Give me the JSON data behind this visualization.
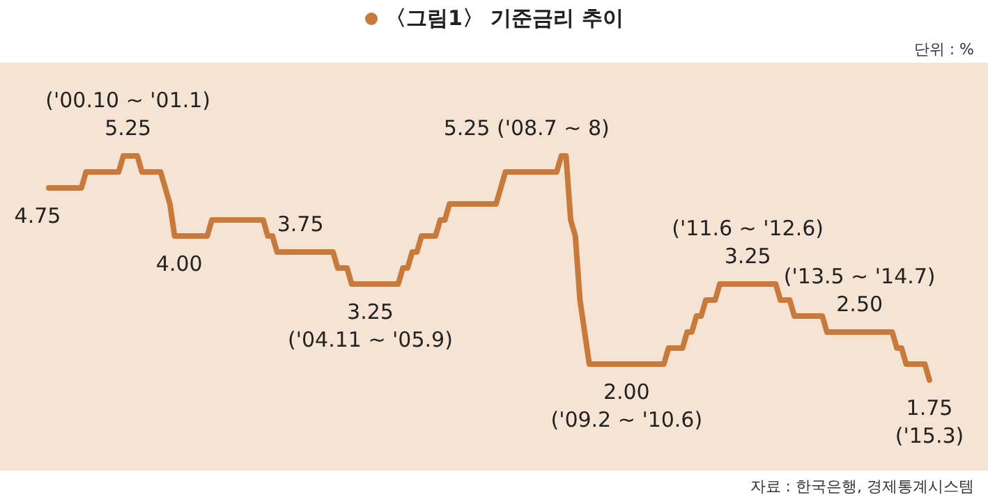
{
  "chart_data": {
    "type": "line",
    "title": "〈그림1〉 기준금리 추이",
    "annotations": [
      "단위 : %",
      "자료 : 한국은행, 경제통계시스템"
    ],
    "categories": [
      null,
      null,
      null,
      null,
      null,
      null,
      null,
      null,
      null,
      null,
      null,
      null,
      null,
      null,
      null,
      null,
      null,
      null,
      null,
      null,
      null,
      null,
      null,
      null,
      null,
      null,
      null,
      null,
      null,
      null,
      null,
      null,
      null,
      null,
      null,
      null,
      null,
      null,
      null,
      null,
      null,
      null,
      null,
      null,
      null,
      null,
      null,
      null,
      null,
      null,
      null,
      null,
      null,
      null,
      null,
      null,
      null,
      null,
      null,
      null,
      null,
      null,
      null,
      null,
      null,
      null,
      null,
      null,
      null,
      null,
      null,
      null,
      null,
      null,
      null,
      null,
      null,
      null,
      null,
      null,
      null,
      null,
      null,
      null,
      null,
      null,
      null,
      null,
      null,
      null,
      null,
      null,
      null,
      null,
      null,
      null,
      null,
      null,
      null,
      null,
      null,
      null,
      null,
      null,
      null,
      null,
      null,
      null,
      null,
      null,
      null,
      null,
      null,
      null,
      null,
      null,
      null,
      null,
      null,
      null,
      null,
      null,
      null,
      null,
      null,
      null,
      null,
      null,
      null,
      null,
      null,
      null,
      null,
      null,
      null,
      null,
      null,
      null,
      null,
      null,
      null,
      null,
      null,
      null,
      null,
      null,
      null,
      null,
      null,
      null,
      null,
      null,
      null,
      null,
      null,
      null,
      null,
      null,
      null,
      null,
      null,
      null,
      null,
      null,
      null,
      null,
      null,
      null,
      null,
      null,
      null,
      null,
      null,
      null,
      null,
      null,
      null,
      null,
      null,
      null,
      null,
      null,
      null,
      null,
      null,
      null,
      null,
      null,
      null,
      null
    ],
    "series": [
      {
        "color": "#c87a3c",
        "values": [
          4.75,
          4.75,
          4.75,
          4.75,
          4.75,
          4.75,
          4.75,
          4.75,
          5,
          5,
          5,
          5,
          5,
          5,
          5,
          5,
          5.25,
          5.25,
          5.25,
          5.25,
          5,
          5,
          5,
          5,
          5,
          4.75,
          4.5,
          4,
          4,
          4,
          4,
          4,
          4,
          4,
          4,
          4.25,
          4.25,
          4.25,
          4.25,
          4.25,
          4.25,
          4.25,
          4.25,
          4.25,
          4.25,
          4.25,
          4.25,
          4,
          4,
          3.75,
          3.75,
          3.75,
          3.75,
          3.75,
          3.75,
          3.75,
          3.75,
          3.75,
          3.75,
          3.75,
          3.75,
          3.75,
          3.5,
          3.5,
          3.5,
          3.25,
          3.25,
          3.25,
          3.25,
          3.25,
          3.25,
          3.25,
          3.25,
          3.25,
          3.25,
          3.25,
          3.5,
          3.5,
          3.75,
          3.75,
          4,
          4,
          4,
          4,
          4.25,
          4.25,
          4.5,
          4.5,
          4.5,
          4.5,
          4.5,
          4.5,
          4.5,
          4.5,
          4.5,
          4.5,
          4.5,
          4.75,
          5,
          5,
          5,
          5,
          5,
          5,
          5,
          5,
          5,
          5,
          5,
          5,
          5.25,
          5.25,
          4.25,
          4,
          3,
          2.5,
          2,
          2,
          2,
          2,
          2,
          2,
          2,
          2,
          2,
          2,
          2,
          2,
          2,
          2,
          2,
          2,
          2,
          2.25,
          2.25,
          2.25,
          2.25,
          2.5,
          2.5,
          2.75,
          2.75,
          3,
          3,
          3,
          3.25,
          3.25,
          3.25,
          3.25,
          3.25,
          3.25,
          3.25,
          3.25,
          3.25,
          3.25,
          3.25,
          3.25,
          3.25,
          3,
          3,
          3,
          2.75,
          2.75,
          2.75,
          2.75,
          2.75,
          2.75,
          2.75,
          2.5,
          2.5,
          2.5,
          2.5,
          2.5,
          2.5,
          2.5,
          2.5,
          2.5,
          2.5,
          2.5,
          2.5,
          2.5,
          2.5,
          2.5,
          2.25,
          2.25,
          2,
          2,
          2,
          2,
          2,
          1.75
        ],
        "value_labels": [
          "4.75",
          null,
          null,
          null,
          null,
          null,
          null,
          null,
          null,
          null,
          null,
          null,
          null,
          null,
          null,
          null,
          null,
          "('00.10 ~ '01.1)\n5.25",
          null,
          null,
          null,
          null,
          null,
          null,
          null,
          null,
          null,
          null,
          "4.00",
          null,
          null,
          null,
          null,
          null,
          null,
          null,
          null,
          null,
          null,
          null,
          null,
          null,
          null,
          null,
          null,
          null,
          null,
          null,
          null,
          null,
          null,
          null,
          null,
          null,
          "3.75",
          null,
          null,
          null,
          null,
          null,
          null,
          null,
          null,
          null,
          null,
          null,
          null,
          null,
          null,
          "3.25\n('04.11 ~ '05.9)",
          null,
          null,
          null,
          null,
          null,
          null,
          null,
          null,
          null,
          null,
          null,
          null,
          null,
          null,
          null,
          null,
          null,
          null,
          null,
          null,
          null,
          null,
          null,
          null,
          null,
          null,
          null,
          null,
          null,
          null,
          null,
          null,
          null,
          null,
          null,
          null,
          null,
          null,
          null,
          null,
          "5.25 ('08.7 ~ 8)",
          null,
          null,
          null,
          null,
          null,
          null,
          null,
          null,
          null,
          null,
          null,
          null,
          null,
          "2.00\n('09.2 ~ '10.6)",
          null,
          null,
          null,
          null,
          null,
          null,
          null,
          null,
          null,
          null,
          null,
          null,
          null,
          null,
          null,
          null,
          null,
          null,
          null,
          null,
          null,
          null,
          null,
          null,
          null,
          "('11.6 ~ '12.6)\n3.25",
          null,
          null,
          null,
          null,
          null,
          null,
          null,
          null,
          null,
          null,
          null,
          null,
          null,
          null,
          null,
          null,
          null,
          null,
          null,
          null,
          null,
          null,
          null,
          "('13.5 ~ '14.7)\n2.50",
          null,
          null,
          null,
          null,
          null,
          null,
          null,
          null,
          null,
          null,
          null,
          null,
          null,
          null,
          "1.75\n('15.3)"
        ]
      }
    ],
    "marker": "none",
    "line_style": "solid"
  }
}
